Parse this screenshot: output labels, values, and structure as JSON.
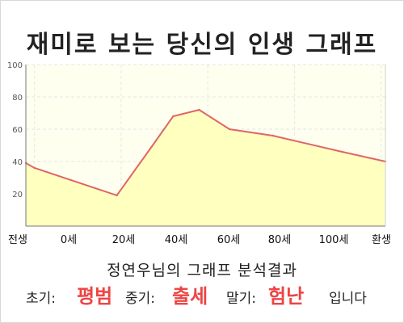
{
  "title": "재미로 보는 당신의 인생 그래프",
  "chart_data": {
    "type": "area",
    "categories": [
      "전생",
      "0세",
      "20세",
      "40세",
      "60세",
      "80세",
      "100세",
      "환생"
    ],
    "series": [
      {
        "x": [
          -2,
          0,
          19,
          27,
          32,
          38,
          45,
          55,
          71,
          81
        ],
        "y": [
          39,
          36,
          19,
          49,
          68,
          72,
          60,
          56,
          46,
          40
        ]
      }
    ],
    "yticks": [
      20,
      40,
      60,
      80,
      100
    ],
    "ylim": [
      0,
      100
    ],
    "grid": true,
    "colors": {
      "fill": "#ffffc0",
      "line": "#e06666",
      "plot_bg": "#fffff0",
      "grid": "#e6e6e6"
    }
  },
  "result": {
    "title": "정연우님의 그래프 분석결과",
    "early_label": "초기:",
    "early_value": "평범",
    "middle_label": "중기:",
    "middle_value": "출세",
    "late_label": "말기:",
    "late_value": "험난",
    "suffix": "입니다"
  }
}
